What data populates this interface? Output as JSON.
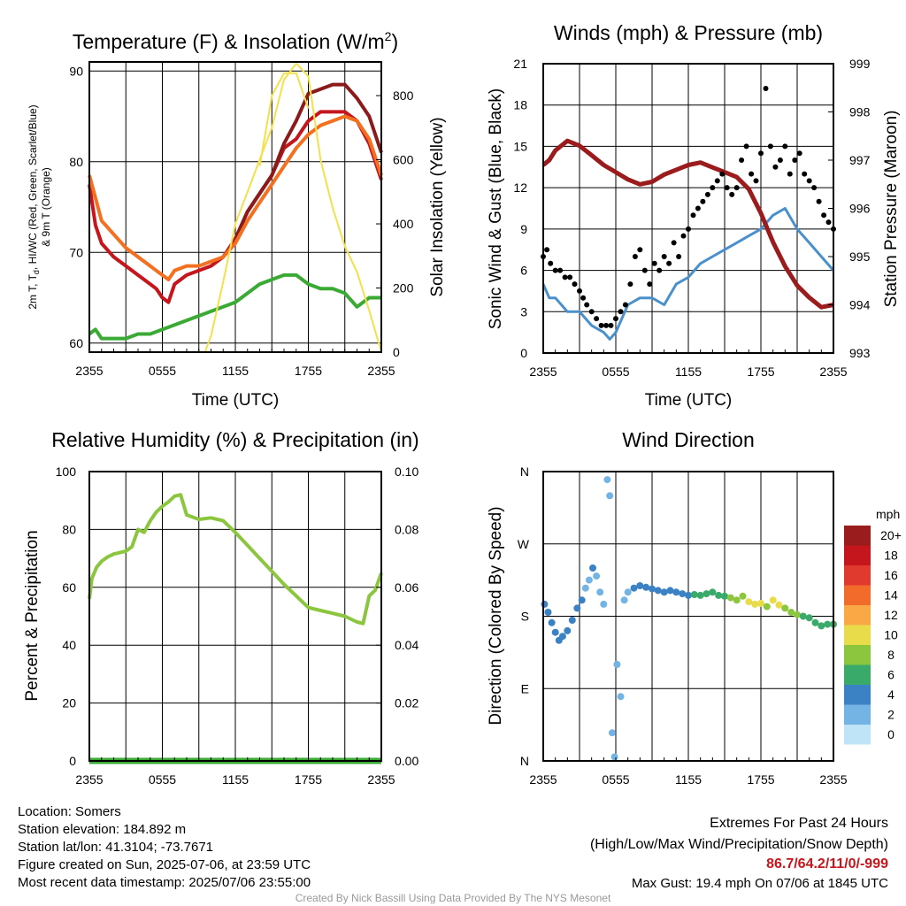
{
  "panels": {
    "temp": {
      "title_main": "Temperature (F) & Insolation (W/m",
      "title_sup": "2",
      "title_close": ")",
      "ylabel_line1_a": "2m T, T",
      "ylabel_line1_sub": "d",
      "ylabel_line1_b": ", HI/WC (Red, Green, Scarlet/Blue)",
      "ylabel_line2": "& 9m T (Orange)",
      "y2label": "Solar Insolation (Yellow)",
      "xlabel": "Time (UTC)"
    },
    "wind": {
      "title": "Winds (mph) & Pressure (mb)",
      "ylabel": "Sonic Wind & Gust (Blue, Black)",
      "y2label": "Station Pressure (Maroon)",
      "xlabel": "Time (UTC)"
    },
    "rh": {
      "title": "Relative Humidity (%) & Precipitation (in)",
      "ylabel": "Percent & Precipitation"
    },
    "dir": {
      "title": "Wind Direction",
      "ylabel": "Direction (Colored By Speed)",
      "colorbar_unit": "mph"
    }
  },
  "chart_data": [
    {
      "type": "line",
      "x_ticks": [
        "2355",
        "0555",
        "1155",
        "1755",
        "2355"
      ],
      "y_ticks": [
        "60",
        "70",
        "80",
        "90"
      ],
      "ylim": [
        59,
        91
      ],
      "y2_ticks": [
        "0",
        "200",
        "400",
        "600",
        "800"
      ],
      "y2lim": [
        0,
        905
      ],
      "x_hours": [
        0,
        24
      ],
      "series": [
        {
          "name": "Red",
          "color": "#c4161c",
          "axis": "left",
          "x": [
            0,
            0.5,
            1,
            2,
            3,
            4,
            5,
            5.5,
            6,
            6.5,
            7,
            8,
            9,
            10,
            11,
            12,
            13,
            14,
            15,
            16,
            17,
            17.5,
            18,
            19,
            20,
            21,
            22,
            23,
            24
          ],
          "y": [
            77.5,
            73,
            71,
            69.5,
            68.5,
            67.5,
            66.5,
            66,
            65,
            64.5,
            66.5,
            67.5,
            68,
            68.5,
            69.5,
            71.5,
            74.5,
            76.5,
            78.5,
            81.5,
            82.5,
            83.5,
            84.5,
            85.5,
            85.5,
            85.5,
            84.5,
            82,
            78
          ]
        },
        {
          "name": "Scarlet",
          "color": "#8b1a1a",
          "axis": "left",
          "x": [
            12,
            13,
            14,
            15,
            16,
            17,
            17.5,
            18,
            19,
            20,
            21,
            22,
            23,
            24
          ],
          "y": [
            71.5,
            74.5,
            76.5,
            78.5,
            82,
            84.5,
            86,
            87.5,
            88,
            88.5,
            88.5,
            87,
            85,
            81
          ]
        },
        {
          "name": "Orange",
          "color": "#f37021",
          "axis": "left",
          "x": [
            0,
            0.5,
            1,
            2,
            3,
            4,
            5,
            5.5,
            6,
            6.5,
            7,
            8,
            9,
            10,
            11,
            12,
            13,
            14,
            15,
            16,
            17,
            18,
            19,
            20,
            21,
            22,
            23,
            24
          ],
          "y": [
            78.5,
            76,
            73.5,
            72,
            70.5,
            69.5,
            68.5,
            68,
            67.5,
            67,
            68,
            68.5,
            68.5,
            69,
            69.5,
            71,
            73.5,
            75.5,
            77.5,
            79.5,
            81.5,
            83,
            84,
            84.5,
            85,
            84.5,
            82.5,
            78.5
          ]
        },
        {
          "name": "Green",
          "color": "#3aaa35",
          "axis": "left",
          "x": [
            0,
            0.5,
            1,
            2,
            3,
            4,
            5,
            6,
            7,
            8,
            9,
            10,
            11,
            12,
            13,
            14,
            15,
            16,
            17,
            18,
            19,
            20,
            21,
            22,
            23,
            24
          ],
          "y": [
            61,
            61.5,
            60.5,
            60.5,
            60.5,
            61,
            61,
            61.5,
            62,
            62.5,
            63,
            63.5,
            64,
            64.5,
            65.5,
            66.5,
            67,
            67.5,
            67.5,
            66.5,
            66,
            66,
            65.5,
            64,
            65,
            65
          ]
        },
        {
          "name": "Yellow",
          "color": "#f2e14c",
          "axis": "right",
          "x": [
            0,
            9.5,
            10,
            11,
            12,
            13,
            14,
            15,
            16,
            17,
            18,
            19,
            20,
            21,
            22,
            23,
            24
          ],
          "y": [
            0,
            0,
            50,
            220,
            400,
            500,
            600,
            700,
            850,
            900,
            860,
            600,
            450,
            330,
            250,
            130,
            0
          ]
        },
        {
          "name": "Yellow",
          "color": "#f2e14c",
          "axis": "right",
          "x": [
            14,
            15,
            16,
            17,
            18
          ],
          "y": [
            580,
            800,
            870,
            870,
            760
          ]
        }
      ]
    },
    {
      "type": "line",
      "x_ticks": [
        "2355",
        "0555",
        "1155",
        "1755",
        "2355"
      ],
      "y_ticks": [
        "0",
        "3",
        "6",
        "9",
        "12",
        "15",
        "18",
        "21"
      ],
      "ylim": [
        0,
        21
      ],
      "y2_ticks": [
        "993",
        "994",
        "995",
        "996",
        "997",
        "998",
        "999"
      ],
      "y2lim": [
        993,
        999
      ],
      "series": [
        {
          "name": "Blue",
          "color": "#4a90cc",
          "axis": "left",
          "x": [
            0,
            0.5,
            1,
            2,
            3,
            4,
            5,
            5.5,
            6,
            7,
            8,
            9,
            10,
            11,
            12,
            13,
            14,
            15,
            16,
            17,
            18,
            19,
            20,
            21,
            22,
            23,
            24
          ],
          "y": [
            5,
            4,
            4,
            3,
            3,
            2,
            1.5,
            1,
            1.5,
            3.5,
            4,
            4,
            3.5,
            5,
            5.5,
            6.5,
            7,
            7.5,
            8,
            8.5,
            9,
            10,
            10.5,
            9,
            8,
            7,
            6
          ]
        },
        {
          "name": "Maroon",
          "color": "#9b1c1c",
          "axis": "right",
          "x": [
            0,
            0.5,
            1,
            2,
            2.5,
            3,
            4,
            5,
            6,
            7,
            8,
            9,
            10,
            11,
            12,
            13,
            14,
            15,
            16,
            17,
            18,
            19,
            20,
            21,
            22,
            23,
            24
          ],
          "y": [
            996.9,
            997.0,
            997.2,
            997.4,
            997.35,
            997.3,
            997.1,
            996.9,
            996.75,
            996.6,
            996.5,
            996.55,
            996.7,
            996.8,
            996.9,
            996.95,
            996.85,
            996.75,
            996.65,
            996.4,
            995.9,
            995.3,
            994.8,
            994.4,
            994.15,
            993.95,
            994.0
          ]
        },
        {
          "name": "Black",
          "color": "#000000",
          "type": "scatter",
          "axis": "left",
          "x": [
            0,
            0.3,
            0.6,
            1,
            1.4,
            1.8,
            2.2,
            2.6,
            3,
            3.3,
            3.6,
            4,
            4.4,
            4.8,
            5.2,
            5.6,
            6,
            6.4,
            6.8,
            7.2,
            7.6,
            8,
            8.4,
            8.8,
            9.2,
            9.6,
            10,
            10.4,
            10.8,
            11.2,
            11.6,
            12,
            12.4,
            12.8,
            13.2,
            13.6,
            14,
            14.4,
            14.8,
            15.2,
            15.6,
            16,
            16.4,
            16.8,
            17.2,
            17.6,
            18,
            18.4,
            18.8,
            19.2,
            19.6,
            20,
            20.4,
            20.8,
            21.2,
            21.6,
            22,
            22.4,
            22.8,
            23.2,
            23.6,
            24
          ],
          "y": [
            7,
            7.5,
            6.5,
            6,
            6,
            5.5,
            5.5,
            5,
            4.5,
            4,
            3.5,
            3,
            2.5,
            2,
            2,
            2,
            2.5,
            3,
            3.5,
            5,
            7,
            7.5,
            6,
            5,
            6.5,
            6,
            7,
            6.5,
            8,
            7,
            8.5,
            9,
            10,
            10.5,
            11,
            11.5,
            12,
            12.5,
            13,
            12,
            11.5,
            12,
            14,
            15,
            13,
            12.5,
            14.5,
            19.2,
            15,
            13.5,
            14,
            15,
            13,
            14,
            14.5,
            13,
            12.5,
            12,
            11,
            10,
            9.5,
            9
          ]
        }
      ]
    },
    {
      "type": "line",
      "x_ticks": [
        "2355",
        "0555",
        "1155",
        "1755",
        "2355"
      ],
      "y_ticks": [
        "0",
        "20",
        "40",
        "60",
        "80",
        "100"
      ],
      "ylim": [
        0,
        100
      ],
      "y2_ticks": [
        "0.00",
        "0.02",
        "0.04",
        "0.06",
        "0.08",
        "0.10"
      ],
      "y2lim": [
        0,
        0.1
      ],
      "series": [
        {
          "name": "RH",
          "color": "#8cc63f",
          "axis": "left",
          "x": [
            0,
            0.2,
            0.6,
            1,
            1.5,
            2,
            2.5,
            3,
            3.5,
            4,
            4.5,
            5,
            5.5,
            6,
            6.5,
            7,
            7.5,
            8,
            9,
            10,
            11,
            12,
            13,
            14,
            15,
            16,
            17,
            18,
            19,
            20,
            21,
            22,
            22.5,
            23,
            23.5,
            24
          ],
          "y": [
            56,
            63,
            67,
            69,
            70.5,
            71.5,
            72,
            72.5,
            74,
            80,
            79,
            83,
            86,
            88,
            89.5,
            91.5,
            92,
            85,
            83.5,
            84,
            83,
            79,
            74.5,
            70,
            65.5,
            61,
            57,
            53,
            52,
            51,
            50,
            48,
            47.5,
            57,
            59,
            65
          ]
        },
        {
          "name": "Precip",
          "color": "#3aaa35",
          "axis": "right",
          "x": [
            0,
            24
          ],
          "y": [
            0,
            0
          ]
        }
      ]
    },
    {
      "type": "scatter",
      "x_ticks": [
        "2355",
        "0555",
        "1155",
        "1755",
        "2355"
      ],
      "y_ticks": [
        "N",
        "E",
        "S",
        "W",
        "N"
      ],
      "ylim": [
        0,
        360
      ],
      "colorbar": {
        "labels": [
          "20+",
          "18",
          "16",
          "14",
          "12",
          "10",
          "8",
          "6",
          "4",
          "2",
          "0"
        ],
        "colors": [
          "#9b1c1c",
          "#c4161c",
          "#e03a2f",
          "#f26b2b",
          "#f9a845",
          "#e8dc4a",
          "#8cc63f",
          "#3aaa6b",
          "#3b82c4",
          "#74b4e4",
          "#bfe4f7"
        ]
      },
      "points_deg": [
        [
          0.1,
          195,
          4
        ],
        [
          0.4,
          185,
          3
        ],
        [
          0.7,
          172,
          4
        ],
        [
          1,
          160,
          4
        ],
        [
          1.3,
          150,
          3
        ],
        [
          1.6,
          155,
          4
        ],
        [
          2,
          162,
          4
        ],
        [
          2.4,
          175,
          3
        ],
        [
          2.8,
          190,
          4
        ],
        [
          3.2,
          200,
          3
        ],
        [
          3.5,
          215,
          2
        ],
        [
          3.8,
          225,
          2
        ],
        [
          4.1,
          240,
          3
        ],
        [
          4.4,
          230,
          2
        ],
        [
          4.7,
          210,
          1
        ],
        [
          5,
          195,
          2
        ],
        [
          5.3,
          350,
          1
        ],
        [
          5.5,
          330,
          1
        ],
        [
          5.7,
          35,
          1
        ],
        [
          5.9,
          5,
          1
        ],
        [
          6.1,
          120,
          2
        ],
        [
          6.4,
          80,
          1
        ],
        [
          6.7,
          200,
          2
        ],
        [
          7,
          210,
          2
        ],
        [
          7.5,
          215,
          4
        ],
        [
          8,
          218,
          4
        ],
        [
          8.5,
          216,
          4
        ],
        [
          9,
          214,
          4
        ],
        [
          9.5,
          212,
          4
        ],
        [
          10,
          210,
          4
        ],
        [
          10.5,
          212,
          4
        ],
        [
          11,
          210,
          4
        ],
        [
          11.5,
          208,
          4
        ],
        [
          12,
          206,
          4
        ],
        [
          12.5,
          207,
          5
        ],
        [
          13,
          206,
          5
        ],
        [
          13.5,
          208,
          5
        ],
        [
          14,
          210,
          6
        ],
        [
          14.5,
          206,
          6
        ],
        [
          15,
          205,
          6
        ],
        [
          15.5,
          203,
          7
        ],
        [
          16,
          200,
          7
        ],
        [
          16.5,
          205,
          8
        ],
        [
          17,
          198,
          9
        ],
        [
          17.5,
          195,
          10
        ],
        [
          18,
          196,
          9
        ],
        [
          18.5,
          192,
          8
        ],
        [
          19,
          200,
          9
        ],
        [
          19.5,
          194,
          10
        ],
        [
          20,
          190,
          8
        ],
        [
          20.5,
          185,
          8
        ],
        [
          21,
          182,
          7
        ],
        [
          21.5,
          180,
          6
        ],
        [
          22,
          178,
          6
        ],
        [
          22.5,
          172,
          6
        ],
        [
          23,
          168,
          6
        ],
        [
          23.5,
          170,
          6
        ],
        [
          24,
          170,
          6
        ]
      ]
    }
  ],
  "info": {
    "location": "Location: Somers",
    "elevation": "Station elevation: 184.892 m",
    "latlon": "Station lat/lon: 41.3104; -73.7671",
    "created": "Figure created on Sun, 2025-07-06, at 23:59 UTC",
    "recent": "Most recent data timestamp: 2025/07/06 23:55:00"
  },
  "extremes": {
    "title": "Extremes For Past 24 Hours",
    "subtitle": "(High/Low/Max Wind/Precipitation/Snow Depth)",
    "values": "86.7/64.2/11/0/-999",
    "gust": "Max Gust: 19.4 mph On 07/06 at 1845 UTC"
  },
  "credit": "Created By Nick Bassill Using Data Provided By The NYS Mesonet",
  "colors": {
    "values_red": "#c4161c",
    "credit_gray": "#999999"
  }
}
